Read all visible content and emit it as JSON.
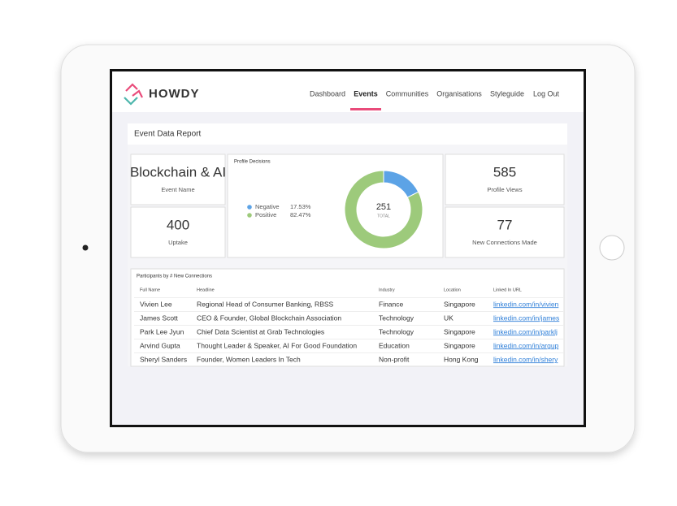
{
  "header": {
    "brand": "HOWDY",
    "nav": [
      "Dashboard",
      "Events",
      "Communities",
      "Organisations",
      "Styleguide",
      "Log Out"
    ],
    "active": 1
  },
  "report": {
    "title": "Event Data Report"
  },
  "cards": [
    {
      "value": "Blockchain & AI",
      "label": "Event Name"
    },
    {
      "value": "400",
      "label": "Uptake"
    },
    {
      "value": "585",
      "label": "Profile Views"
    },
    {
      "value": "77",
      "label": "New Connections Made"
    }
  ],
  "profile_decisions": {
    "type": "pie",
    "title": "Profile Decisions",
    "categories": [
      "Negative",
      "Positive"
    ],
    "values": [
      17.53,
      82.47
    ],
    "value_labels": [
      "17.53%",
      "82.47%"
    ],
    "colors": [
      "#5ca3e6",
      "#9dca7b"
    ],
    "total": "251",
    "total_label": "TOTAL"
  },
  "table": {
    "title": "Participants by # New Connections",
    "columns": [
      "Full Name",
      "Headline",
      "Industry",
      "Location",
      "Linked In URL"
    ],
    "rows": [
      [
        "Vivien Lee",
        "Regional Head of Consumer Banking, RBSS",
        "Finance",
        "Singapore",
        "linkedin.com/in/vivien"
      ],
      [
        "James Scott",
        "CEO & Founder, Global Blockchain Association",
        "Technology",
        "UK",
        "linkedin.com/in/james"
      ],
      [
        "Park Lee Jyun",
        "Chief Data Scientist at Grab Technologies",
        "Technology",
        "Singapore",
        "linkedin.com/in/parklj"
      ],
      [
        "Arvind Gupta",
        "Thought Leader & Speaker, AI For Good Foundation",
        "Education",
        "Singapore",
        "linkedin.com/in/argup"
      ],
      [
        "Sheryl Sanders",
        "Founder, Women Leaders In Tech",
        "Non-profit",
        "Hong Kong",
        "linkedin.com/in/shery"
      ]
    ]
  }
}
